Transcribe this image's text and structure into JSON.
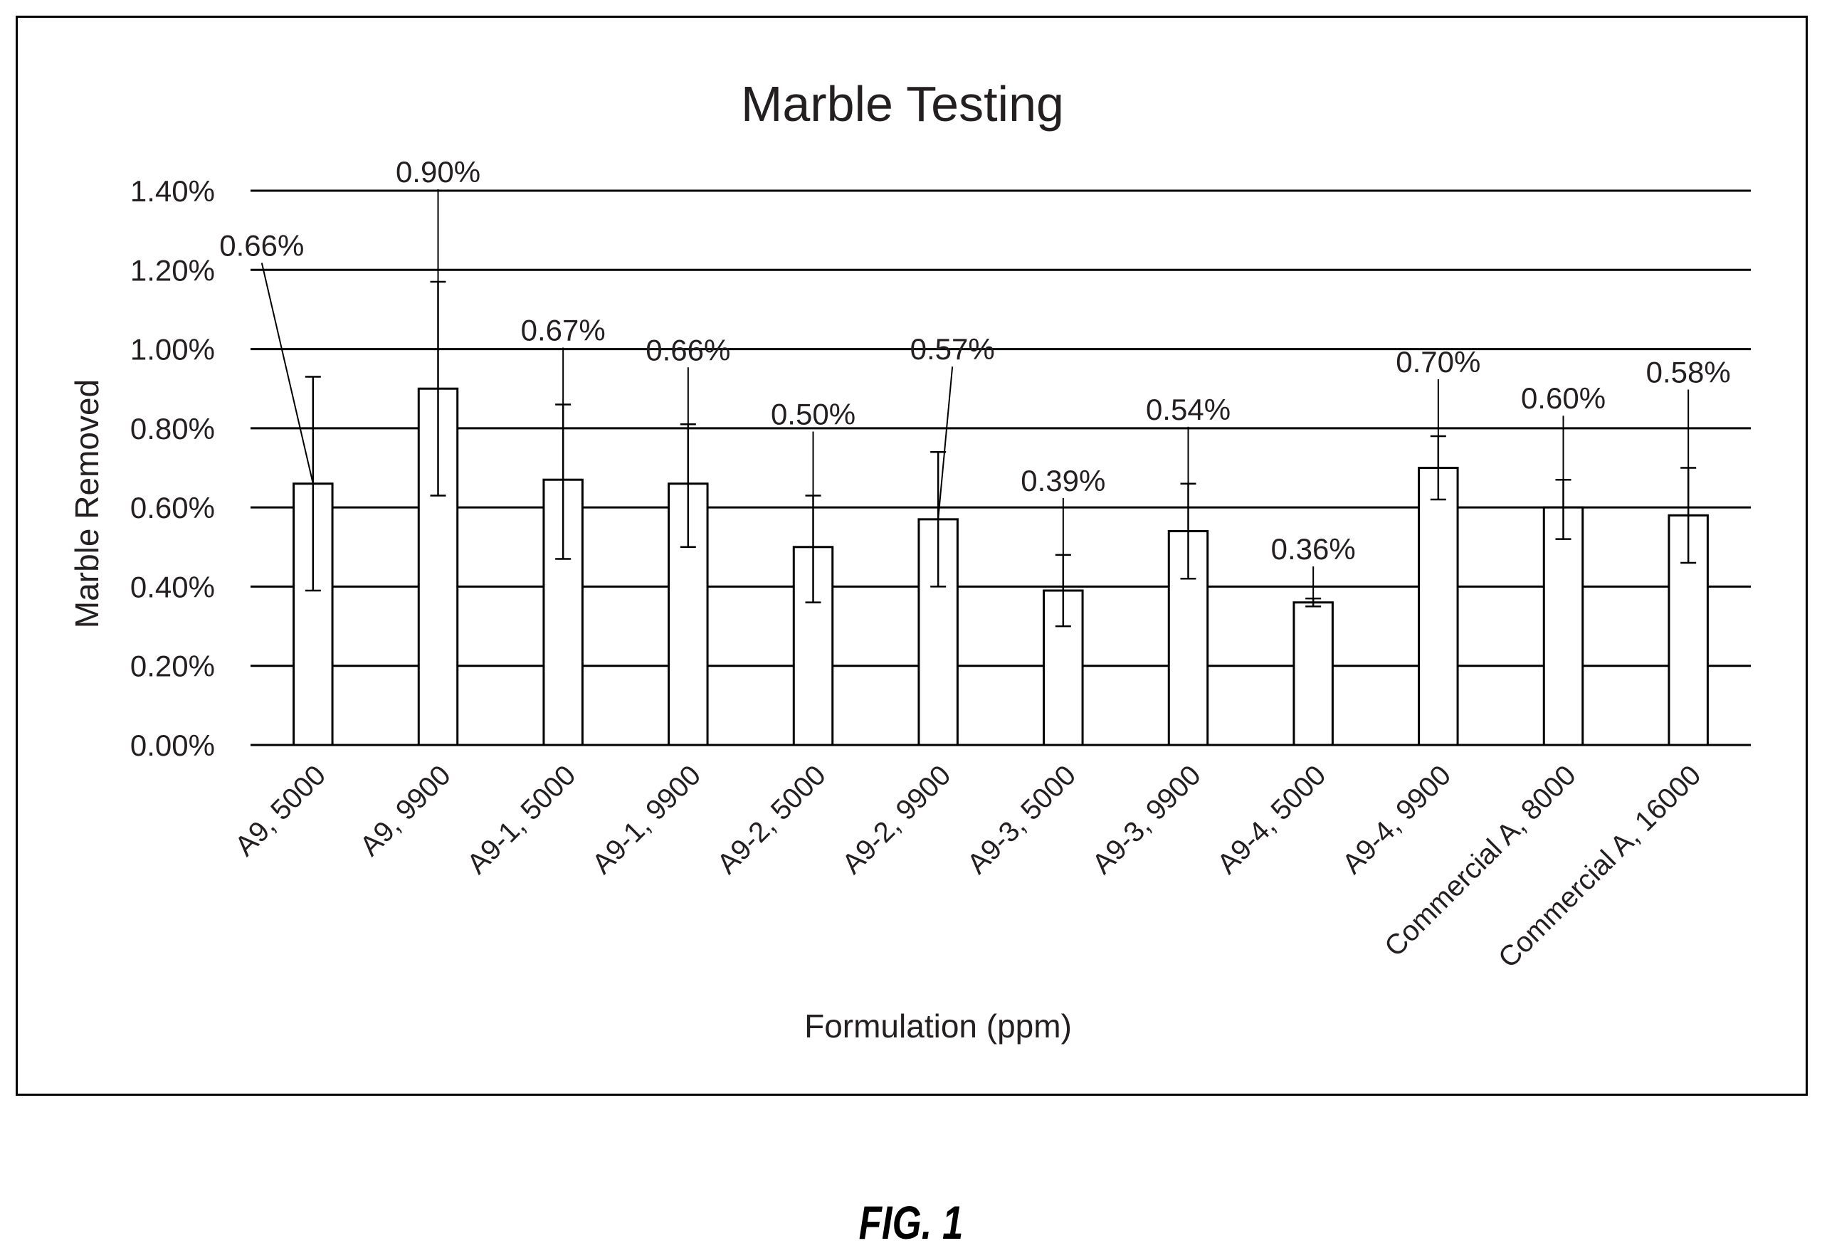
{
  "chart_data": {
    "type": "bar",
    "title": "Marble Testing",
    "xlabel": "Formulation (ppm)",
    "ylabel": "Marble Removed",
    "ylim": [
      0,
      1.4
    ],
    "y_ticks": [
      0,
      0.2,
      0.4,
      0.6,
      0.8,
      1.0,
      1.2,
      1.4
    ],
    "y_tick_labels": [
      "0.00%",
      "0.20%",
      "0.40%",
      "0.60%",
      "0.80%",
      "1.00%",
      "1.20%",
      "1.40%"
    ],
    "grid": true,
    "legend": "none",
    "categories": [
      "A9, 5000",
      "A9, 9900",
      "A9-1, 5000",
      "A9-1, 9900",
      "A9-2, 5000",
      "A9-2, 9900",
      "A9-3, 5000",
      "A9-3, 9900",
      "A9-4, 5000",
      "A9-4, 9900",
      "Commercial A, 8000",
      "Commercial A, 16000"
    ],
    "values": [
      0.66,
      0.9,
      0.67,
      0.66,
      0.5,
      0.57,
      0.39,
      0.54,
      0.36,
      0.7,
      0.6,
      0.58
    ],
    "value_labels": [
      "0.66%",
      "0.90%",
      "0.67%",
      "0.66%",
      "0.50%",
      "0.57%",
      "0.39%",
      "0.54%",
      "0.36%",
      "0.70%",
      "0.60%",
      "0.58%"
    ],
    "error_low": [
      0.39,
      0.63,
      0.47,
      0.5,
      0.36,
      0.4,
      0.3,
      0.42,
      0.35,
      0.62,
      0.52,
      0.46
    ],
    "error_high": [
      0.93,
      1.17,
      0.86,
      0.81,
      0.63,
      0.74,
      0.48,
      0.66,
      0.37,
      0.78,
      0.67,
      0.7
    ],
    "colors": {
      "bar_fill": "#ffffff",
      "bar_stroke": "#000000",
      "grid": "#000000",
      "text": "#231f20"
    }
  },
  "caption": "FIG. 1"
}
